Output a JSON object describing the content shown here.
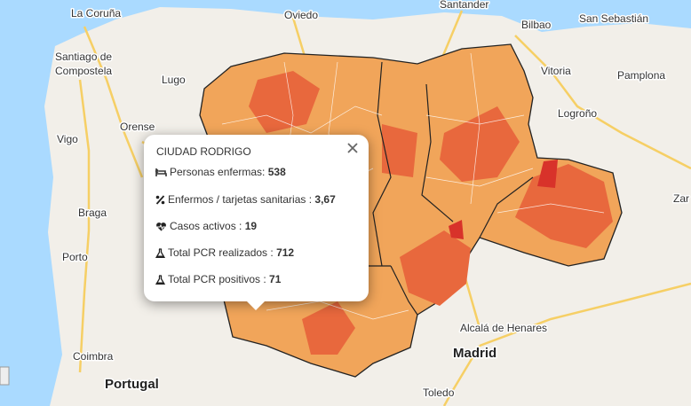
{
  "map": {
    "places": [
      "La Coruña",
      "Oviedo",
      "Santander",
      "Bilbao",
      "San Sebastián",
      "Santiago de",
      "Compostela",
      "Lugo",
      "Vitoria",
      "Pamplona",
      "Logroño",
      "Orense",
      "Vigo",
      "Braga",
      "Porto",
      "Coimbra",
      "Portugal",
      "Madrid",
      "Alcalá de Henares",
      "Toledo",
      "Zar"
    ]
  },
  "popup": {
    "title": "CIUDAD RODRIGO",
    "rows": [
      {
        "label": "Personas enfermas: ",
        "value": "538"
      },
      {
        "label": "Enfermos / tarjetas sanitarias : ",
        "value": "3,67"
      },
      {
        "label": "Casos activos : ",
        "value": "19"
      },
      {
        "label": "Total PCR realizados : ",
        "value": "712"
      },
      {
        "label": "Total PCR positivos : ",
        "value": "71"
      }
    ]
  }
}
